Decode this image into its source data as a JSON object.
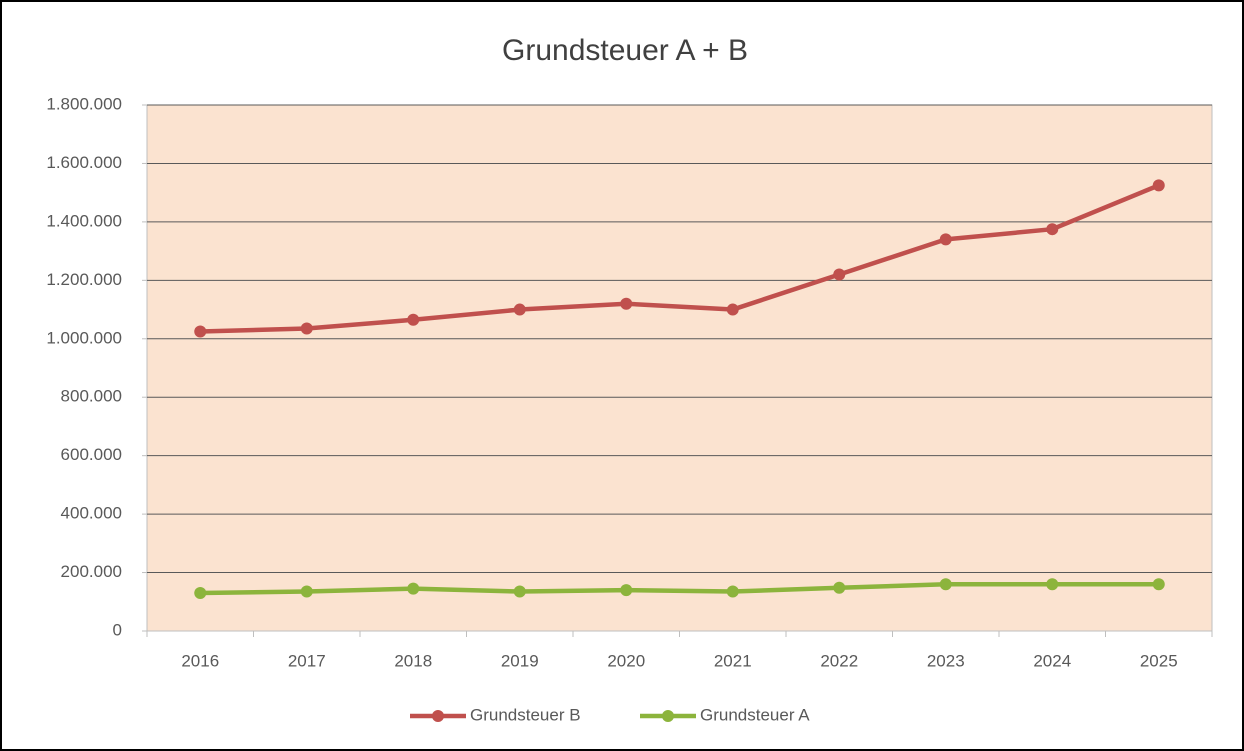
{
  "chart_data": {
    "type": "line",
    "title": "Grundsteuer A + B",
    "categories": [
      "2016",
      "2017",
      "2018",
      "2019",
      "2020",
      "2021",
      "2022",
      "2023",
      "2024",
      "2025"
    ],
    "series": [
      {
        "name": "Grundsteuer B",
        "color": "#c0504d",
        "values": [
          1025000,
          1035000,
          1065000,
          1100000,
          1120000,
          1100000,
          1220000,
          1340000,
          1375000,
          1525000
        ]
      },
      {
        "name": "Grundsteuer A",
        "color": "#8cb43c",
        "values": [
          130000,
          135000,
          145000,
          135000,
          140000,
          135000,
          148000,
          160000,
          160000,
          160000
        ]
      }
    ],
    "ylim": [
      0,
      1800000
    ],
    "yticks": [
      0,
      {
        "value": 200000,
        "label": "200.000"
      },
      {
        "value": 400000,
        "label": "400.000"
      },
      {
        "value": 600000,
        "label": "600.000"
      },
      {
        "value": 800000,
        "label": "800.000"
      },
      {
        "value": 1000000,
        "label": "1.000.000"
      },
      {
        "value": 1200000,
        "label": "1.200.000"
      },
      {
        "value": 1400000,
        "label": "1.400.000"
      },
      {
        "value": 1600000,
        "label": "1.600.000"
      },
      {
        "value": 1800000,
        "label": "1.800.000"
      }
    ],
    "grid": true,
    "legend": "bottom",
    "plot_background": "#fbe3d0"
  }
}
